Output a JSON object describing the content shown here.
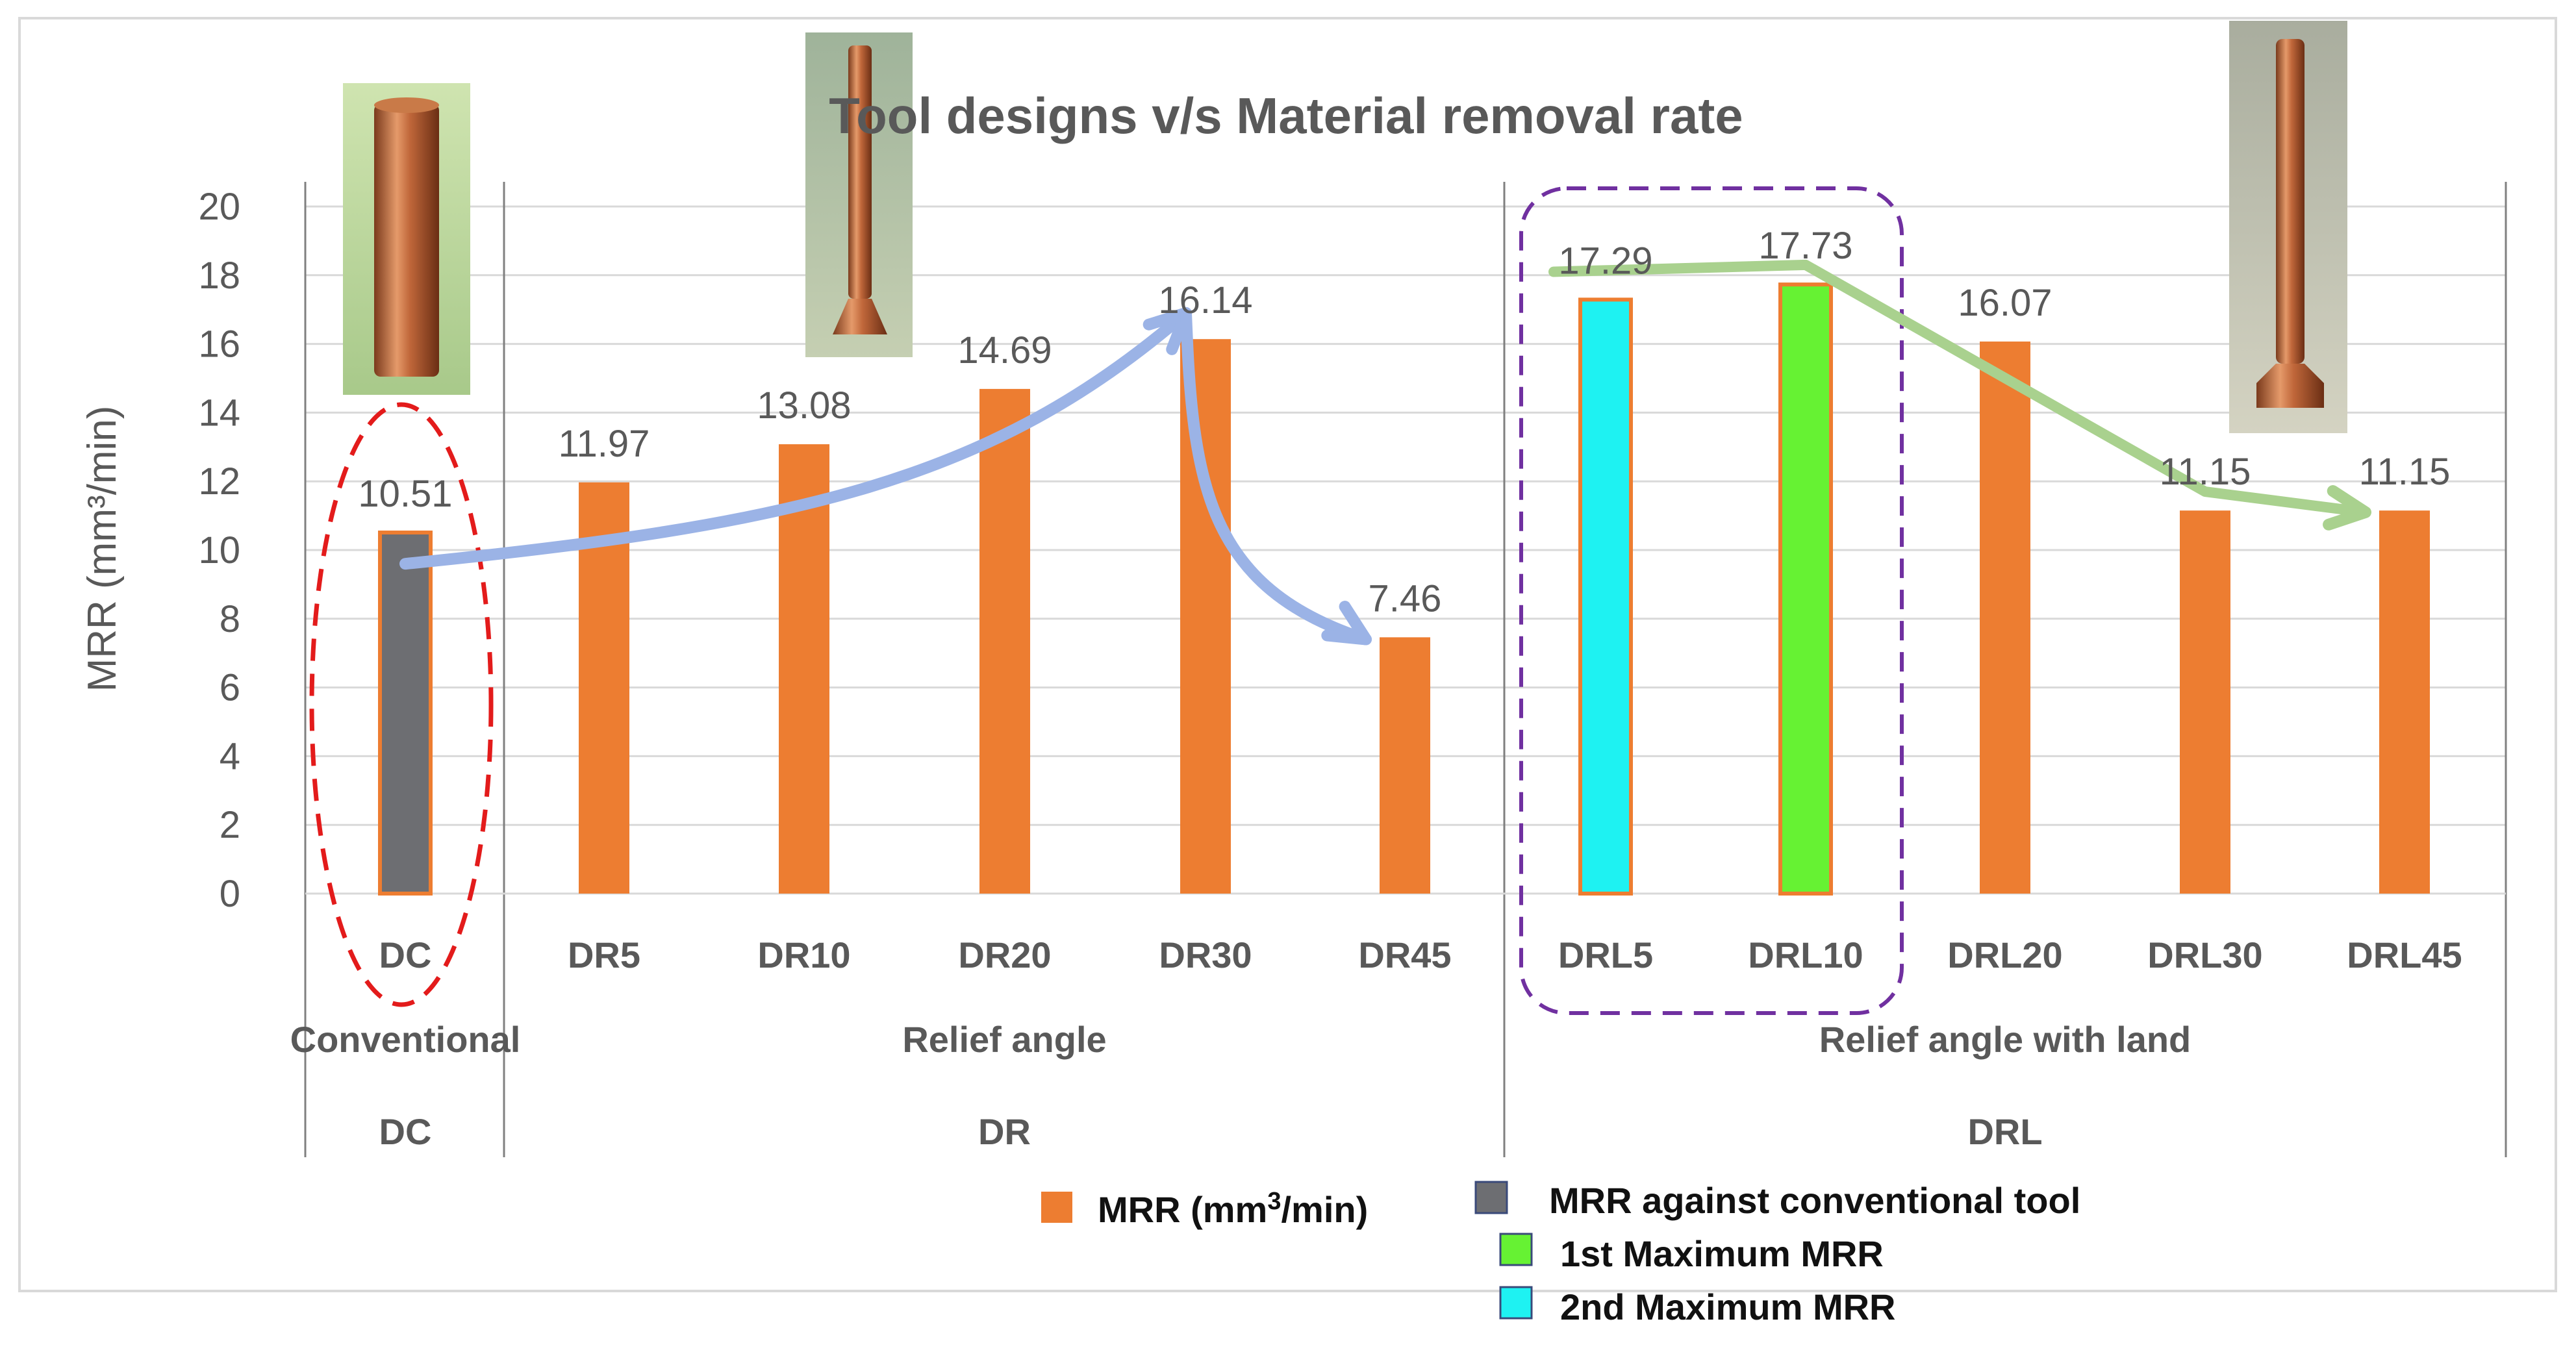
{
  "colors": {
    "default_bar": "#ED7D31",
    "conventional_bar": "#6D6E72",
    "max1_bar": "#66F233",
    "max2_bar": "#1EF2F2",
    "blue_arrow": "#9BB3E6",
    "green_arrow": "#A9D18E",
    "red_ellipse": "#E31B1B",
    "purple_box": "#7030A0",
    "gridline": "#D9D9D9",
    "axis_text": "#595959"
  },
  "chart_data": {
    "type": "bar",
    "title": "Tool designs v/s Material removal rate",
    "ylabel": "MRR (mm³/min)",
    "ylim": [
      0,
      20
    ],
    "yticks": [
      "0",
      "2",
      "4",
      "6",
      "8",
      "10",
      "12",
      "14",
      "16",
      "18",
      "20"
    ],
    "categories": [
      "DC",
      "DR5",
      "DR10",
      "DR20",
      "DR30",
      "DR45",
      "DRL5",
      "DRL10",
      "DRL20",
      "DRL30",
      "DRL45"
    ],
    "values": [
      10.51,
      11.97,
      13.08,
      14.69,
      16.14,
      7.46,
      17.29,
      17.73,
      16.07,
      11.15,
      11.15
    ],
    "value_labels": [
      "10.51",
      "11.97",
      "13.08",
      "14.69",
      "16.14",
      "7.46",
      "17.29",
      "17.73",
      "16.07",
      "11.15",
      "11.15"
    ],
    "bar_roles": [
      "conventional",
      "default",
      "default",
      "default",
      "default",
      "default",
      "max2",
      "max1",
      "default",
      "default",
      "default"
    ],
    "groups": [
      {
        "description": "Conventional",
        "code": "DC",
        "start": 0,
        "end": 0
      },
      {
        "description": "Relief angle",
        "code": "DR",
        "start": 1,
        "end": 5
      },
      {
        "description": "Relief angle with land",
        "code": "DRL",
        "start": 6,
        "end": 10
      }
    ],
    "trend_arrows": [
      {
        "name": "relief-angle-trend",
        "points": [
          [
            0,
            9.6
          ],
          [
            4,
            16.9
          ]
        ],
        "then": [
          [
            4,
            16.9
          ],
          [
            5,
            7.4
          ]
        ]
      },
      {
        "name": "land-trend",
        "points": [
          [
            6,
            18.1
          ],
          [
            7,
            18.3
          ],
          [
            9,
            11.7
          ],
          [
            10,
            11.1
          ]
        ]
      }
    ],
    "legend": [
      {
        "label_main": "MRR (mm",
        "sup": "3",
        "label_end": "/min)",
        "role": "default"
      },
      {
        "label_main": "MRR against conventional tool",
        "sup": "",
        "label_end": "",
        "role": "conventional"
      },
      {
        "label_main": "1st Maximum MRR",
        "sup": "",
        "label_end": "",
        "role": "max1"
      },
      {
        "label_main": "2nd Maximum MRR",
        "sup": "",
        "label_end": "",
        "role": "max2"
      }
    ],
    "highlights": [
      {
        "name": "conventional-highlight-ellipse",
        "shape": "ellipse",
        "indices": [
          0
        ]
      },
      {
        "name": "max-mrr-highlight-box",
        "shape": "box",
        "indices": [
          6,
          7
        ]
      }
    ]
  }
}
